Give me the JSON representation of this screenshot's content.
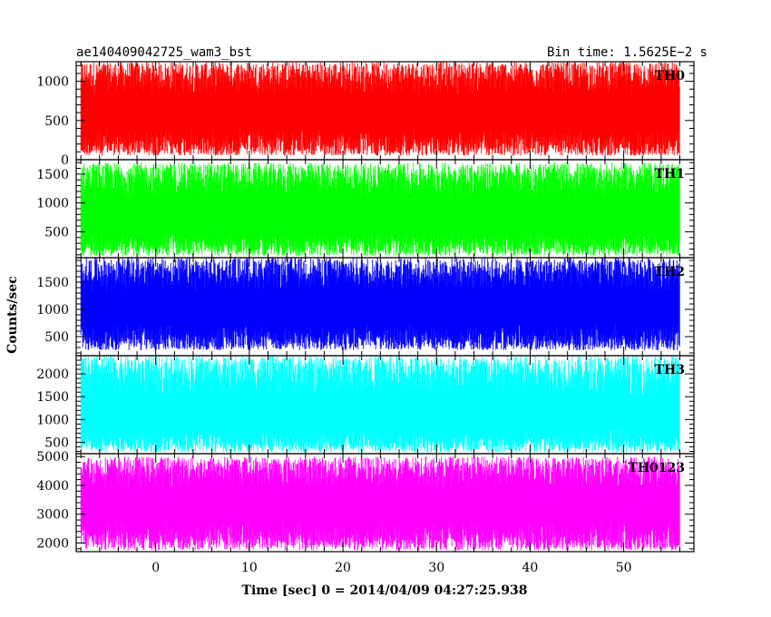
{
  "header": {
    "left_title": "ae140409042725_wam3_bst",
    "right_title": "Bin time: 1.5625E−2 s"
  },
  "chart_data": {
    "type": "line",
    "title": "ae140409042725_wam3_bst",
    "subtitle": "Bin time: 1.5625E−2 s",
    "xlabel": "Time [sec] 0 = 2014/04/09 04:27:25.938",
    "ylabel": "Counts/sec",
    "xlim": [
      -8.5,
      57.5
    ],
    "data_x_range": [
      -8,
      56
    ],
    "x_ticks": [
      0,
      10,
      20,
      30,
      40,
      50
    ],
    "grid": false,
    "panels": [
      {
        "name": "TH0",
        "color": "#ff0000",
        "ylim": [
          0,
          1250
        ],
        "y_ticks": [
          0,
          500,
          1000
        ],
        "y_tick_labels": [
          "0",
          "500",
          "1000"
        ],
        "level": 600,
        "spread_min": 50,
        "spread_max": 1250
      },
      {
        "name": "TH1",
        "color": "#00ff00",
        "ylim": [
          50,
          1750
        ],
        "y_ticks": [
          500,
          1000,
          1500
        ],
        "y_tick_labels": [
          "500",
          "1000",
          "1500"
        ],
        "level": 750,
        "spread_min": 80,
        "spread_max": 1700
      },
      {
        "name": "TH2",
        "color": "#0000ff",
        "ylim": [
          150,
          1950
        ],
        "y_ticks": [
          500,
          1000,
          1500
        ],
        "y_tick_labels": [
          "500",
          "1000",
          "1500"
        ],
        "level": 1000,
        "spread_min": 250,
        "spread_max": 1950
      },
      {
        "name": "TH3",
        "color": "#00ffff",
        "ylim": [
          250,
          2400
        ],
        "y_ticks": [
          500,
          1000,
          1500,
          2000
        ],
        "y_tick_labels": [
          "500",
          "1000",
          "1500",
          "2000"
        ],
        "level": 1050,
        "spread_min": 280,
        "spread_max": 2400
      },
      {
        "name": "TH0123",
        "color": "#ff00ff",
        "ylim": [
          1700,
          5100
        ],
        "y_ticks": [
          2000,
          3000,
          4000,
          5000
        ],
        "y_tick_labels": [
          "2000",
          "3000",
          "4000",
          "5000"
        ],
        "level": 3300,
        "spread_min": 1750,
        "spread_max": 5000
      }
    ]
  }
}
